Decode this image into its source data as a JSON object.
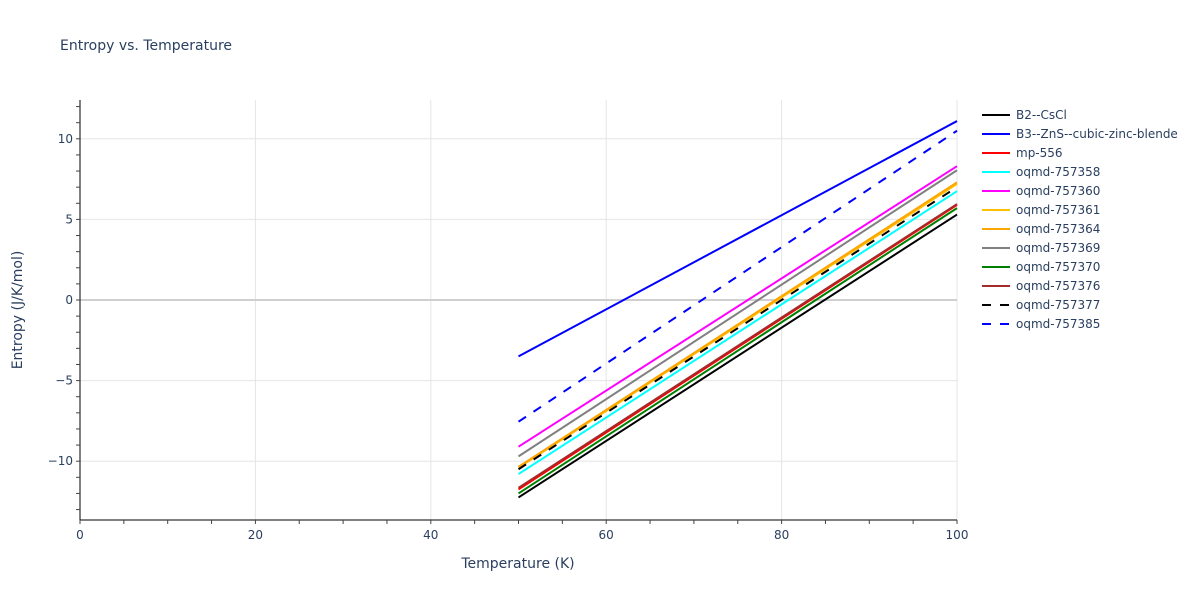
{
  "chart_data": {
    "type": "line",
    "title": "Entropy vs. Temperature",
    "xlabel": "Temperature (K)",
    "ylabel": "Entropy (J/K/mol)",
    "xlim": [
      0,
      100
    ],
    "ylim": [
      -13.5,
      12.5
    ],
    "xticks": [
      0,
      20,
      40,
      60,
      80,
      100
    ],
    "yticks": [
      -10,
      -5,
      0,
      5,
      10
    ],
    "ytick_labels": [
      "−10",
      "−5",
      "0",
      "5",
      "10"
    ],
    "grid": true,
    "legend_position": "right",
    "x": [
      50,
      100
    ],
    "series": [
      {
        "name": "B2--CsCl",
        "color": "#000000",
        "dash": false,
        "values": [
          -12.25,
          5.3
        ]
      },
      {
        "name": "B3--ZnS--cubic-zinc-blende",
        "color": "#0000ff",
        "dash": false,
        "values": [
          -3.5,
          11.1
        ]
      },
      {
        "name": "mp-556",
        "color": "#ff0000",
        "dash": false,
        "values": [
          -11.75,
          5.9
        ]
      },
      {
        "name": "oqmd-757358",
        "color": "#00ffff",
        "dash": false,
        "values": [
          -10.8,
          6.75
        ]
      },
      {
        "name": "oqmd-757360",
        "color": "#ff00ff",
        "dash": false,
        "values": [
          -9.1,
          8.3
        ]
      },
      {
        "name": "oqmd-757361",
        "color": "#ffc000",
        "dash": false,
        "values": [
          -10.4,
          7.2
        ]
      },
      {
        "name": "oqmd-757364",
        "color": "#ffa500",
        "dash": false,
        "values": [
          -10.35,
          7.3
        ]
      },
      {
        "name": "oqmd-757369",
        "color": "#808080",
        "dash": false,
        "values": [
          -9.7,
          8.05
        ]
      },
      {
        "name": "oqmd-757370",
        "color": "#008000",
        "dash": false,
        "values": [
          -12.0,
          5.7
        ]
      },
      {
        "name": "oqmd-757376",
        "color": "#a52a2a",
        "dash": false,
        "values": [
          -11.65,
          5.95
        ]
      },
      {
        "name": "oqmd-757377",
        "color": "#000000",
        "dash": true,
        "values": [
          -10.5,
          7.0
        ]
      },
      {
        "name": "oqmd-757385",
        "color": "#0000ff",
        "dash": true,
        "values": [
          -7.55,
          10.5
        ]
      }
    ]
  }
}
